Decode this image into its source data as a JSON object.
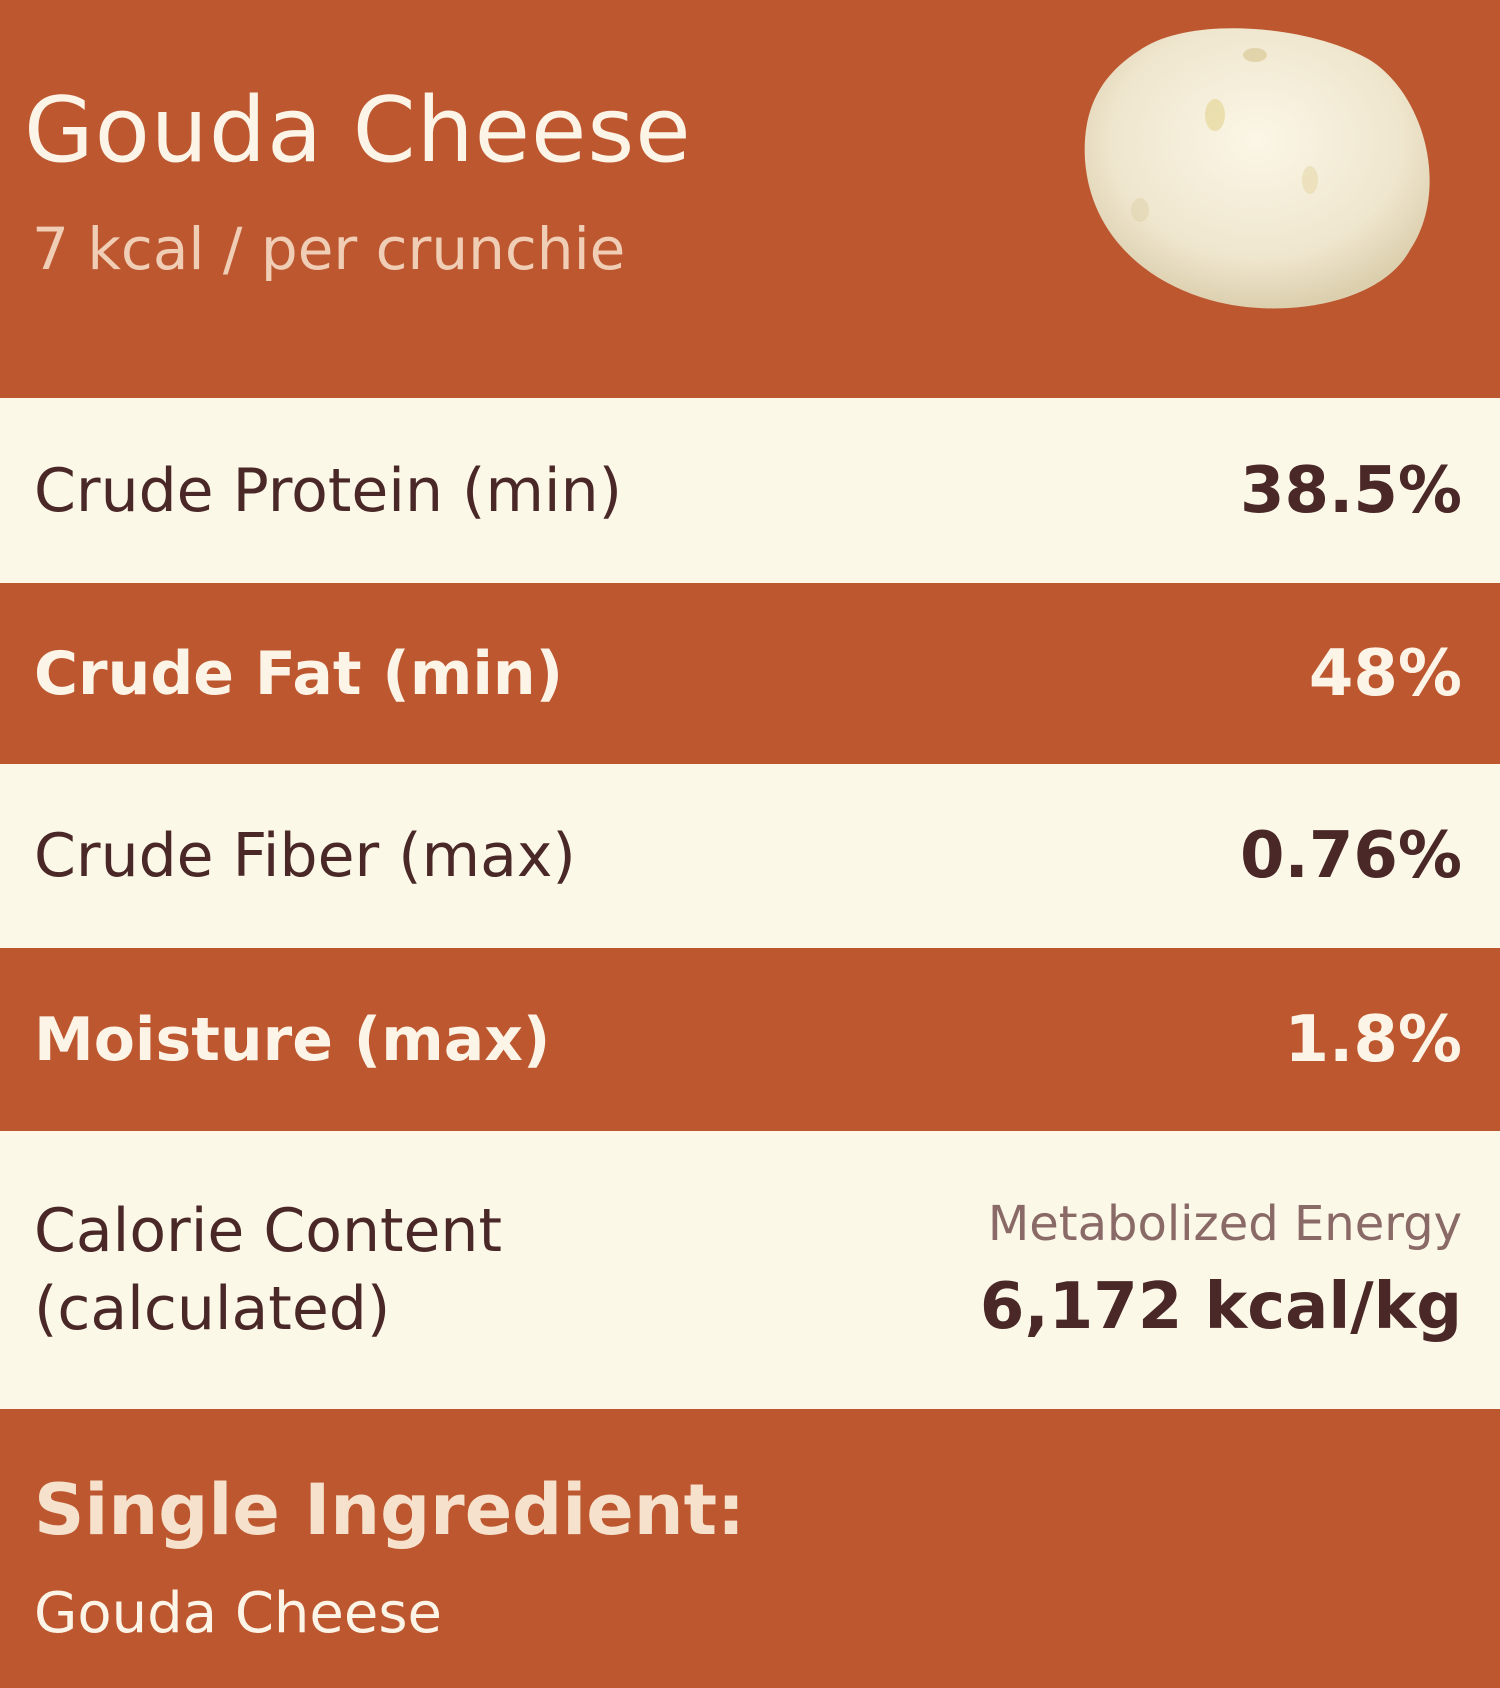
{
  "header": {
    "title": "Gouda Cheese",
    "subtitle": "7 kcal / per crunchie",
    "image": "cheese-crunchie"
  },
  "rows": [
    {
      "label": "Crude Protein (min)",
      "value": "38.5%"
    },
    {
      "label": "Crude Fat (min)",
      "value": "48%"
    },
    {
      "label": "Crude Fiber (max)",
      "value": "0.76%"
    },
    {
      "label": "Moisture (max)",
      "value": "1.8%"
    }
  ],
  "calorie": {
    "label_line1": "Calorie Content",
    "label_line2": "(calculated)",
    "sub": "Metabolized Energy",
    "value": "6,172 kcal/kg"
  },
  "footer": {
    "title": "Single Ingredient:",
    "text": "Gouda Cheese"
  },
  "colors": {
    "accent": "#BD5730",
    "cream": "#FCF8E8",
    "text_dark": "#4A2828"
  }
}
